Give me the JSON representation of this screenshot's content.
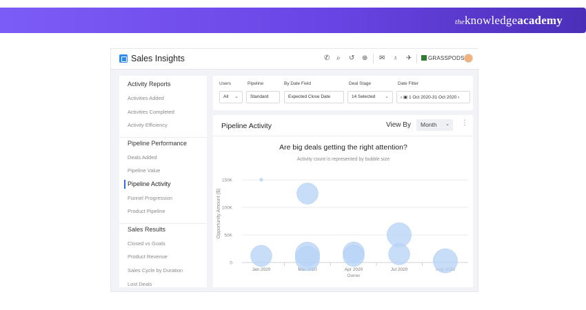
{
  "banner": {
    "brand_prefix": "the",
    "brand_mid": "knowledge",
    "brand_bold": "academy"
  },
  "app": {
    "title": "Sales Insights",
    "toolbar_icons": [
      "phone-icon",
      "search-icon",
      "history-icon",
      "add-icon",
      "mail-icon",
      "mic-icon",
      "notification-icon"
    ],
    "org": "GRASSPODS"
  },
  "sidebar": {
    "sections": [
      {
        "heading": "Activity Reports",
        "items": [
          "Activities Added",
          "Activities Completed",
          "Activity Efficiency"
        ]
      },
      {
        "heading": "Pipeline Performance",
        "items": [
          "Deals Added",
          "Pipeline Value",
          "Pipeline Activity",
          "Funnel Progression",
          "Product Pipeline"
        ]
      },
      {
        "heading": "Sales Results",
        "items": [
          "Closed vs Goals",
          "Product Revenue",
          "Sales Cycle by Duration",
          "Lost Deals"
        ]
      }
    ],
    "active_item": "Pipeline Activity"
  },
  "filters": {
    "users": {
      "label": "Users",
      "value": "All"
    },
    "pipeline": {
      "label": "Pipeline",
      "value": "Standard"
    },
    "date_field": {
      "label": "By Date Field",
      "value": "Expected Close Date"
    },
    "deal_stage": {
      "label": "Deal Stage",
      "value": "14 Selected"
    },
    "date_filter": {
      "label": "Date Filter",
      "value": "1 Oct 2020-31 Oct 2020"
    }
  },
  "panel": {
    "title": "Pipeline Activity",
    "view_by_label": "View By",
    "view_by_value": "Month"
  },
  "chart_data": {
    "type": "scatter",
    "title": "Are big deals getting the right attention?",
    "subtitle": "Activity count is represented by bubble size",
    "xlabel": "Owner",
    "ylabel": "Opportunity Amount ($)",
    "categories": [
      "Jan 2020",
      "Mar 2020",
      "Apr 2020",
      "Jul 2020",
      "Aug 2020"
    ],
    "y_ticks": [
      {
        "value": 0,
        "label": "0"
      },
      {
        "value": 50000,
        "label": "50K"
      },
      {
        "value": 100000,
        "label": "100K"
      },
      {
        "value": 150000,
        "label": "150K"
      }
    ],
    "ylim": [
      0,
      150000
    ],
    "grid": true,
    "points": [
      {
        "category": "Jan 2020",
        "y": 150000,
        "size": 1
      },
      {
        "category": "Jan 2020",
        "y": 12000,
        "size": 7
      },
      {
        "category": "Mar 2020",
        "y": 125000,
        "size": 7
      },
      {
        "category": "Mar 2020",
        "y": 15000,
        "size": 8
      },
      {
        "category": "Mar 2020",
        "y": 7000,
        "size": 8
      },
      {
        "category": "Apr 2020",
        "y": 18000,
        "size": 7
      },
      {
        "category": "Apr 2020",
        "y": 12000,
        "size": 7
      },
      {
        "category": "Jul 2020",
        "y": 50000,
        "size": 8
      },
      {
        "category": "Jul 2020",
        "y": 15000,
        "size": 7
      },
      {
        "category": "Aug 2020",
        "y": 3000,
        "size": 8
      }
    ],
    "bubble_color": "#b9d4f6"
  }
}
